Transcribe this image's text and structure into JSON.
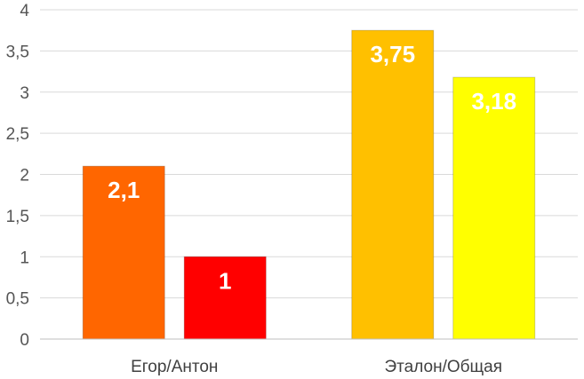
{
  "chart_data": {
    "type": "bar",
    "title": "",
    "xlabel": "",
    "ylabel": "",
    "ylim": [
      0,
      4
    ],
    "yticks": [
      0,
      0.5,
      1,
      1.5,
      2,
      2.5,
      3,
      3.5,
      4
    ],
    "ytick_labels": [
      "0",
      "0,5",
      "1",
      "1,5",
      "2",
      "2,5",
      "3",
      "3,5",
      "4"
    ],
    "grid": true,
    "legend": "none",
    "groups": [
      {
        "category": "Егор/Антон",
        "bars": [
          {
            "value": 2.1,
            "label": "2,1",
            "color": "#ff6600"
          },
          {
            "value": 1,
            "label": "1",
            "color": "#ff0000"
          }
        ]
      },
      {
        "category": "Эталон/Общая",
        "bars": [
          {
            "value": 3.75,
            "label": "3,75",
            "color": "#ffc000"
          },
          {
            "value": 3.18,
            "label": "3,18",
            "color": "#ffff00"
          }
        ]
      }
    ]
  }
}
